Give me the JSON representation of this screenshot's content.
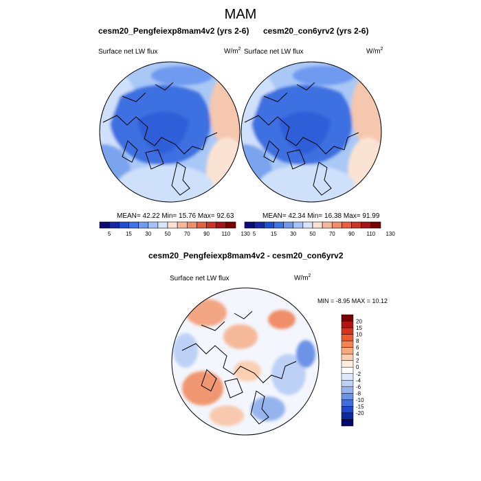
{
  "title": "MAM",
  "panels": [
    {
      "title": "cesm20_Pengfeiexp8mam4v2 (yrs 2-6)",
      "variable": "Surface net LW flux",
      "units_base": "W/m",
      "units_exp": "2",
      "stats": "MEAN=  42.22  Min=  15.76  Max=  92.63"
    },
    {
      "title": "cesm20_con6yrv2 (yrs 2-6)",
      "variable": "Surface net LW flux",
      "units_base": "W/m",
      "units_exp": "2",
      "stats": "MEAN=  42.34  Min=  16.38  Max=  91.99"
    }
  ],
  "diff_panel": {
    "title": "cesm20_Pengfeiexp8mam4v2 - cesm20_con6yrv2",
    "variable": "Surface net LW flux",
    "units_base": "W/m",
    "units_exp": "2",
    "minmax": "MIN =  -8.95 MAX =  10.12"
  },
  "chart_data": [
    {
      "type": "heatmap",
      "projection": "north polar stereographic",
      "title": "cesm20_Pengfeiexp8mam4v2 (yrs 2-6)",
      "variable": "Surface net LW flux",
      "units": "W/m2",
      "mean": 42.22,
      "min": 15.76,
      "max": 92.63,
      "colorbar_ticks": [
        "5",
        "15",
        "30",
        "50",
        "70",
        "90",
        "110",
        "130"
      ],
      "colorbar_colors": [
        "#0a0a78",
        "#1428a8",
        "#1e4fd2",
        "#3c73e6",
        "#6e9af0",
        "#a5c3f7",
        "#d7e6fb",
        "#fbe3d3",
        "#f5b99a",
        "#ef8e68",
        "#e4603f",
        "#cc3524",
        "#a51414",
        "#7a0000"
      ]
    },
    {
      "type": "heatmap",
      "projection": "north polar stereographic",
      "title": "cesm20_con6yrv2 (yrs 2-6)",
      "variable": "Surface net LW flux",
      "units": "W/m2",
      "mean": 42.34,
      "min": 16.38,
      "max": 91.99,
      "colorbar_ticks": [
        "5",
        "15",
        "30",
        "50",
        "70",
        "90",
        "110",
        "130"
      ],
      "colorbar_colors": [
        "#0a0a78",
        "#1428a8",
        "#1e4fd2",
        "#3c73e6",
        "#6e9af0",
        "#a5c3f7",
        "#d7e6fb",
        "#fbe3d3",
        "#f5b99a",
        "#ef8e68",
        "#e4603f",
        "#cc3524",
        "#a51414",
        "#7a0000"
      ]
    },
    {
      "type": "heatmap",
      "projection": "north polar stereographic",
      "title": "cesm20_Pengfeiexp8mam4v2 - cesm20_con6yrv2",
      "variable": "Surface net LW flux",
      "units": "W/m2",
      "min": -8.95,
      "max": 10.12,
      "colorbar_ticks": [
        "20",
        "15",
        "10",
        "8",
        "6",
        "4",
        "2",
        "0",
        "-2",
        "-4",
        "-6",
        "-8",
        "-10",
        "-15",
        "-20"
      ],
      "colorbar_colors": [
        "#7a0000",
        "#b4140f",
        "#d9321c",
        "#ef5a2e",
        "#f5844f",
        "#f8a97a",
        "#fbcfb0",
        "#fdebdc",
        "#ffffff",
        "#dfe9fb",
        "#bcd1f5",
        "#95b4ee",
        "#6c93e6",
        "#3d6edc",
        "#1f49c8",
        "#0c2aa0",
        "#000a6e"
      ]
    }
  ]
}
